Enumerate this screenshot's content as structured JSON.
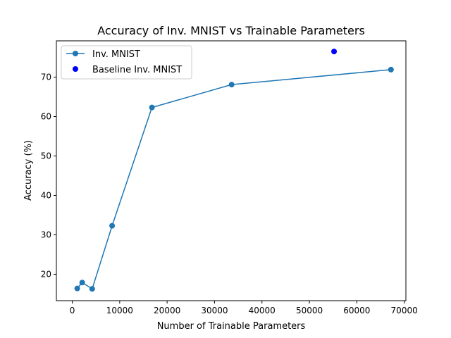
{
  "chart_data": {
    "type": "line",
    "title": "Accuracy of Inv. MNIST vs Trainable Parameters",
    "xlabel": "Number of Trainable Parameters",
    "ylabel": "Accuracy (%)",
    "xlim": [
      -3350,
      70350
    ],
    "ylim": [
      13.3,
      79.2
    ],
    "xticks": [
      0,
      10000,
      20000,
      30000,
      40000,
      50000,
      60000,
      70000
    ],
    "yticks": [
      20,
      30,
      40,
      50,
      60,
      70
    ],
    "grid": false,
    "legend_position": "upper-left",
    "series": [
      {
        "name": "Inv. MNIST",
        "kind": "line+markers",
        "color": "#1f77b4",
        "x": [
          1050,
          2100,
          4200,
          8400,
          16800,
          33600,
          67200
        ],
        "y": [
          16.4,
          17.9,
          16.3,
          32.3,
          62.3,
          68.1,
          71.9
        ]
      },
      {
        "name": "Baseline Inv. MNIST",
        "kind": "scatter",
        "color": "#0000ff",
        "x": [
          55200
        ],
        "y": [
          76.5
        ]
      }
    ]
  }
}
